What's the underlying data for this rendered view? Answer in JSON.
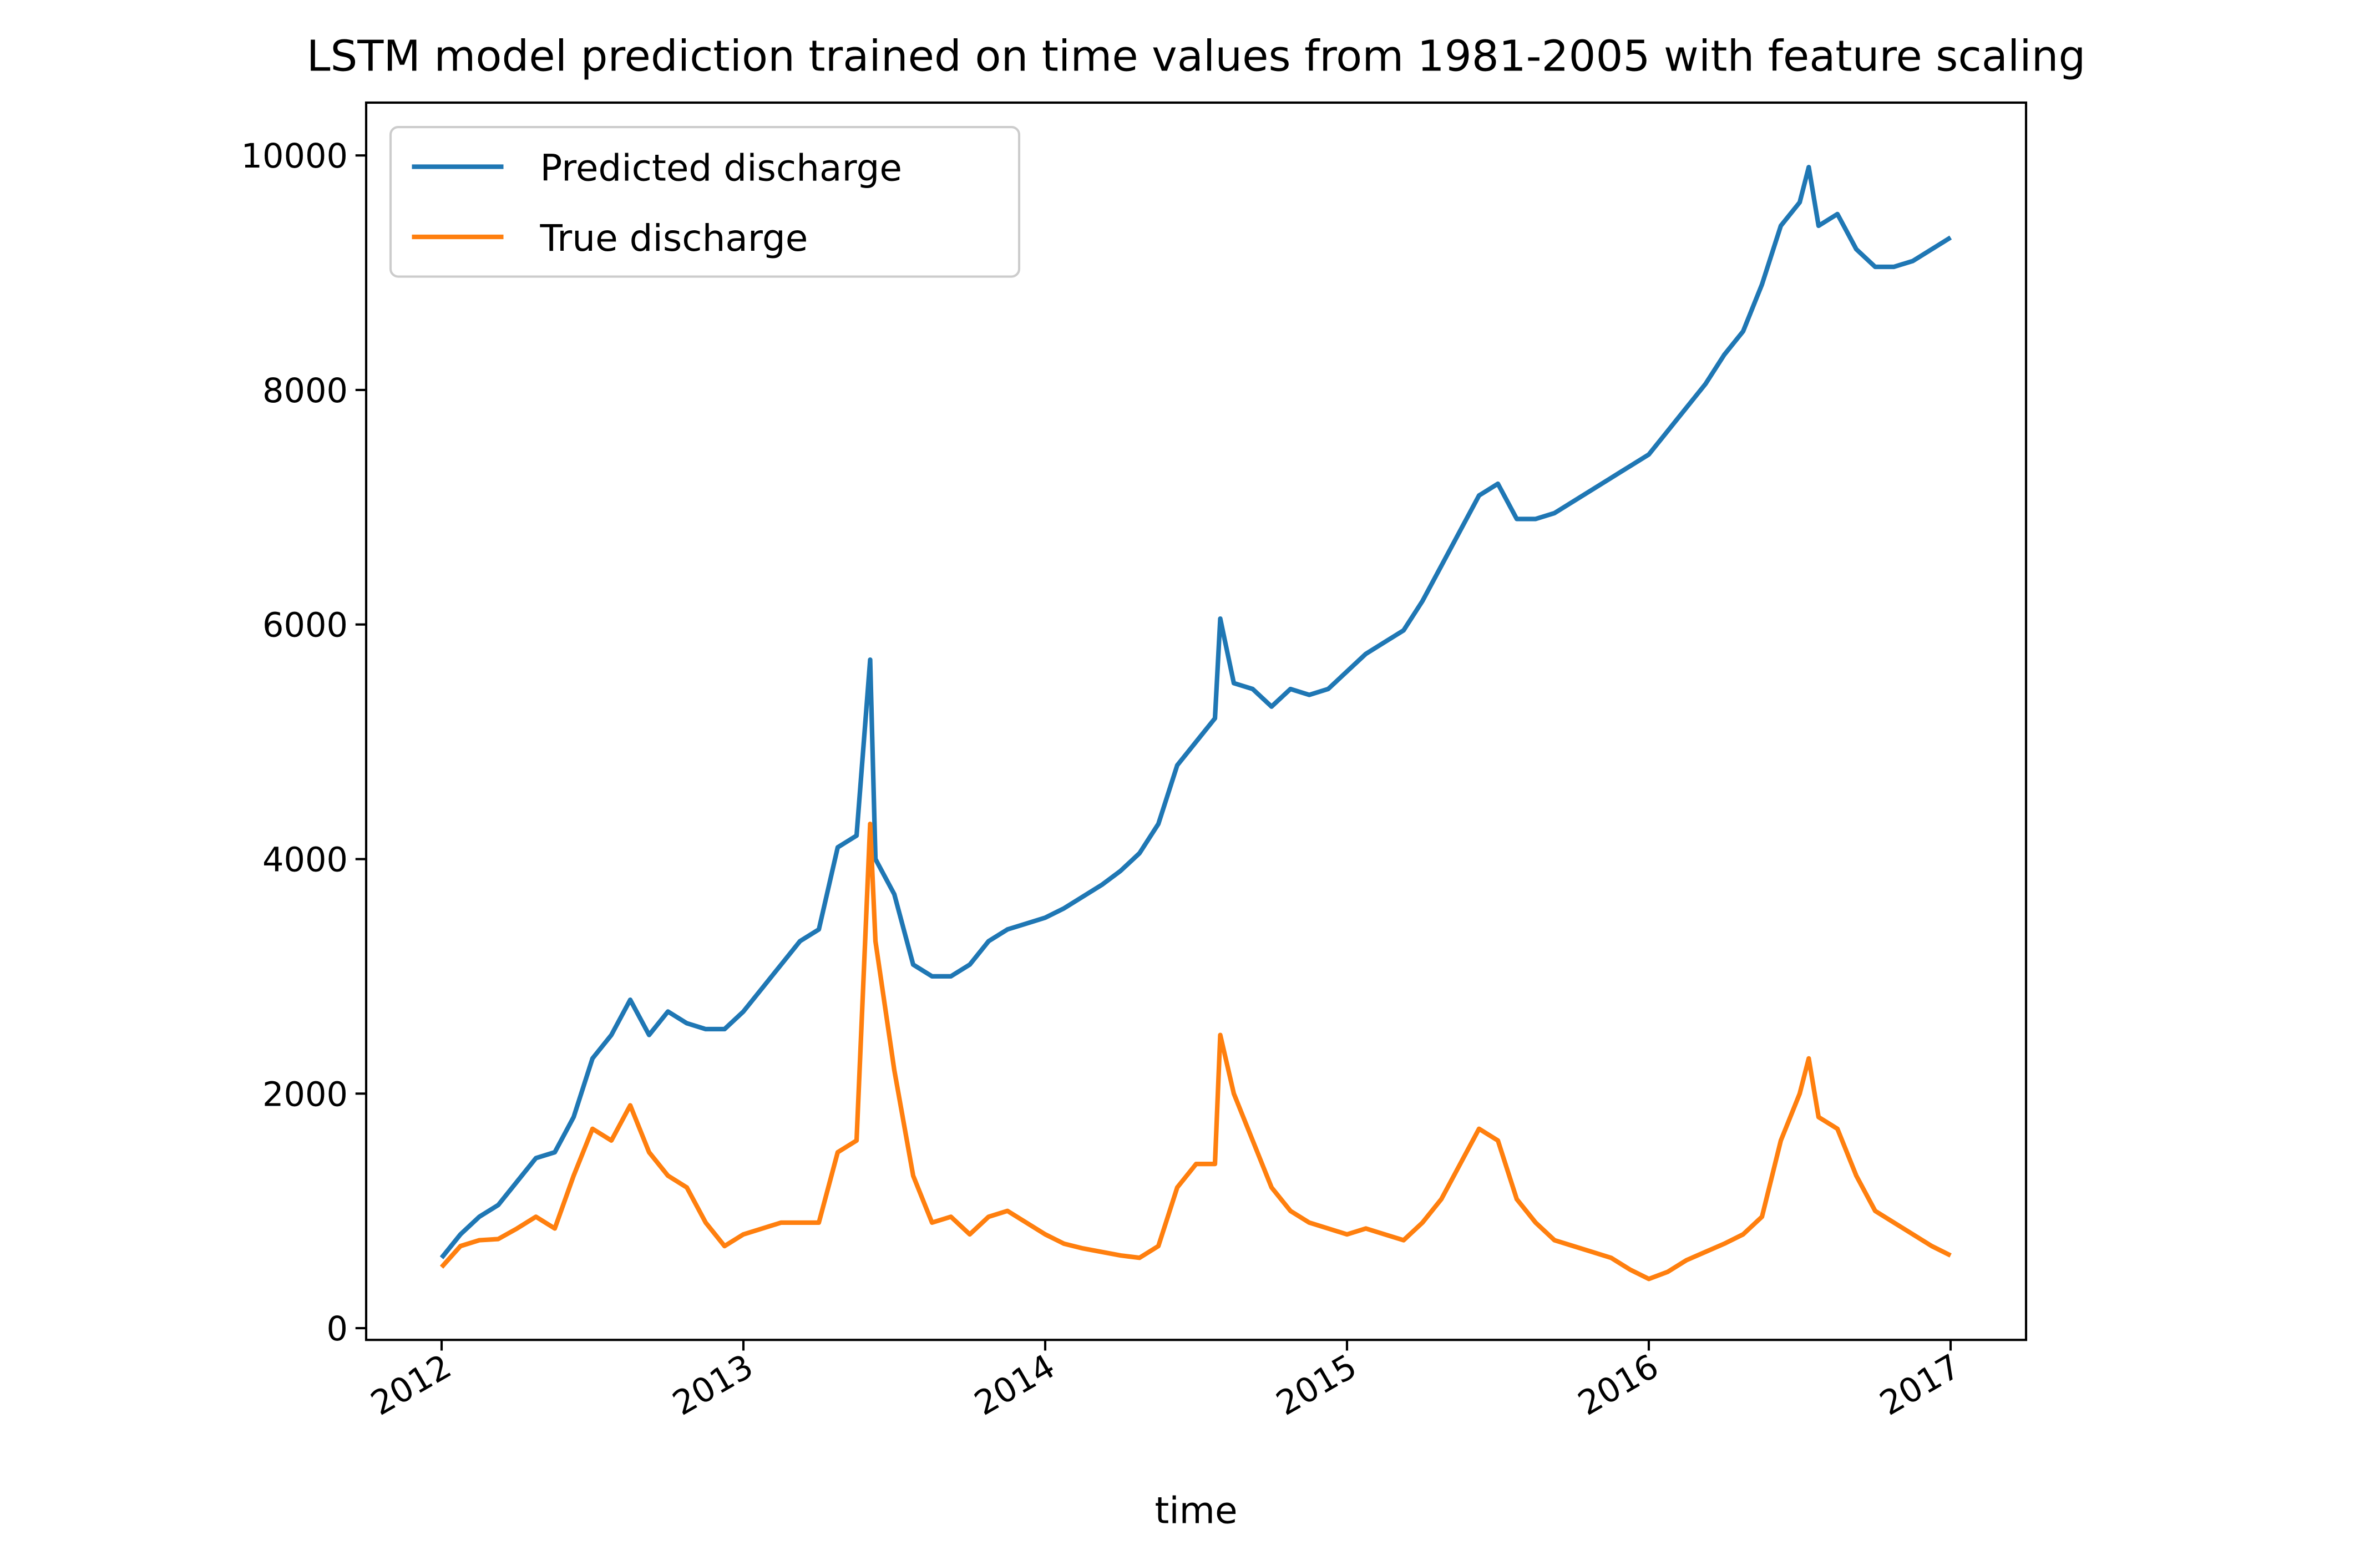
{
  "chart_data": {
    "type": "line",
    "title": "LSTM model prediction trained on time values from 1981-2005 with feature scaling",
    "x_label": "time",
    "x": [
      2012,
      2012.0625,
      2012.125,
      2012.1875,
      2012.25,
      2012.3125,
      2012.375,
      2012.4375,
      2012.5,
      2012.5625,
      2012.625,
      2012.6875,
      2012.75,
      2012.8125,
      2012.875,
      2012.9375,
      2013,
      2013.0625,
      2013.125,
      2013.1875,
      2013.25,
      2013.3125,
      2013.375,
      2013.42,
      2013.4375,
      2013.5,
      2013.5625,
      2013.625,
      2013.6875,
      2013.75,
      2013.8125,
      2013.875,
      2013.9375,
      2014,
      2014.0625,
      2014.125,
      2014.1875,
      2014.25,
      2014.3125,
      2014.375,
      2014.4375,
      2014.5,
      2014.5625,
      2014.58,
      2014.625,
      2014.6875,
      2014.75,
      2014.8125,
      2014.875,
      2014.9375,
      2015,
      2015.0625,
      2015.125,
      2015.1875,
      2015.25,
      2015.3125,
      2015.375,
      2015.4375,
      2015.5,
      2015.5625,
      2015.625,
      2015.6875,
      2015.75,
      2015.8125,
      2015.875,
      2015.9375,
      2016,
      2016.0625,
      2016.125,
      2016.1875,
      2016.25,
      2016.3125,
      2016.375,
      2016.4375,
      2016.5,
      2016.53,
      2016.5625,
      2016.625,
      2016.6875,
      2016.75,
      2016.8125,
      2016.875,
      2016.9375,
      2017
    ],
    "series": [
      {
        "name": "Predicted discharge",
        "color": "#1f77b4",
        "values": [
          600,
          800,
          950,
          1050,
          1250,
          1450,
          1500,
          1800,
          2300,
          2500,
          2800,
          2500,
          2700,
          2600,
          2550,
          2550,
          2700,
          2900,
          3100,
          3300,
          3400,
          4100,
          4200,
          5700,
          4000,
          3700,
          3100,
          3000,
          3000,
          3100,
          3300,
          3400,
          3450,
          3500,
          3580,
          3680,
          3780,
          3900,
          4050,
          4300,
          4800,
          5000,
          5200,
          6050,
          5500,
          5450,
          5300,
          5450,
          5400,
          5450,
          5600,
          5750,
          5850,
          5950,
          6200,
          6500,
          6800,
          7100,
          7200,
          6900,
          6900,
          6950,
          7050,
          7150,
          7250,
          7350,
          7450,
          7650,
          7850,
          8050,
          8300,
          8500,
          8900,
          9400,
          9600,
          9900,
          9400,
          9500,
          9200,
          9050,
          9050,
          9100,
          9200,
          9300
        ]
      },
      {
        "name": "True discharge",
        "color": "#ff7f0e",
        "values": [
          520,
          700,
          750,
          760,
          850,
          950,
          850,
          1300,
          1700,
          1600,
          1900,
          1500,
          1300,
          1200,
          900,
          700,
          800,
          850,
          900,
          900,
          900,
          1500,
          1600,
          4300,
          3300,
          2200,
          1300,
          900,
          950,
          800,
          950,
          1000,
          900,
          800,
          720,
          680,
          650,
          620,
          600,
          700,
          1200,
          1400,
          1400,
          2500,
          2000,
          1600,
          1200,
          1000,
          900,
          850,
          800,
          850,
          800,
          750,
          900,
          1100,
          1400,
          1700,
          1600,
          1100,
          900,
          750,
          700,
          650,
          600,
          500,
          420,
          480,
          580,
          650,
          720,
          800,
          950,
          1600,
          2000,
          2300,
          1800,
          1700,
          1300,
          1000,
          900,
          800,
          700,
          620
        ]
      }
    ],
    "xlim": [
      2011.75,
      2017.25
    ],
    "xticks": [
      2012,
      2013,
      2014,
      2015,
      2016,
      2017
    ],
    "ylim": [
      -100,
      10450
    ],
    "yticks": [
      0,
      2000,
      4000,
      6000,
      8000,
      10000
    ],
    "legend": "upper left"
  }
}
